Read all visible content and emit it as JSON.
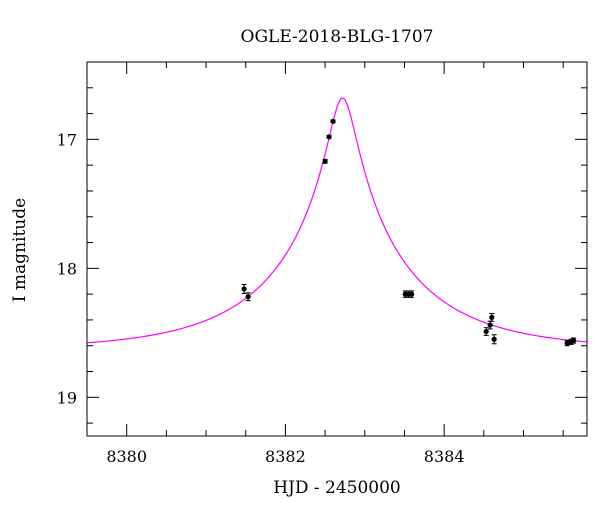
{
  "chart_data": {
    "type": "scatter",
    "title": "OGLE-2018-BLG-1707",
    "xlabel": "HJD - 2450000",
    "ylabel": "I magnitude",
    "xlim": [
      8379.5,
      8385.8
    ],
    "ylim": [
      19.3,
      16.4
    ],
    "y_inverted": true,
    "x_ticks_major": [
      8380,
      8382,
      8384
    ],
    "x_tick_labels": [
      "8380",
      "8382",
      "8384"
    ],
    "y_ticks_major": [
      17,
      18,
      19
    ],
    "y_tick_labels": [
      "17",
      "18",
      "19"
    ],
    "grid": false,
    "colors": {
      "model": "#ff00ff",
      "points": "#000000"
    },
    "series": [
      {
        "type": "scatter",
        "x": [
          8382.5,
          8382.55,
          8382.6,
          8381.48,
          8381.53,
          8383.51,
          8383.55,
          8383.59,
          8384.53,
          8384.58,
          8384.6,
          8384.63,
          8385.55,
          8385.6,
          8385.63
        ],
        "y": [
          17.17,
          16.98,
          16.86,
          18.16,
          18.22,
          18.2,
          18.2,
          18.2,
          18.49,
          18.44,
          18.38,
          18.55,
          18.58,
          18.57,
          18.56
        ],
        "yerr": [
          0.015,
          0.01,
          0.01,
          0.035,
          0.03,
          0.025,
          0.025,
          0.025,
          0.03,
          0.03,
          0.03,
          0.035,
          0.02,
          0.02,
          0.02
        ]
      },
      {
        "type": "line",
        "model": "point-lens light curve",
        "t0": 8382.72,
        "tE": 1.65,
        "u0": 0.098,
        "baseline_mag": 18.63
      }
    ]
  }
}
